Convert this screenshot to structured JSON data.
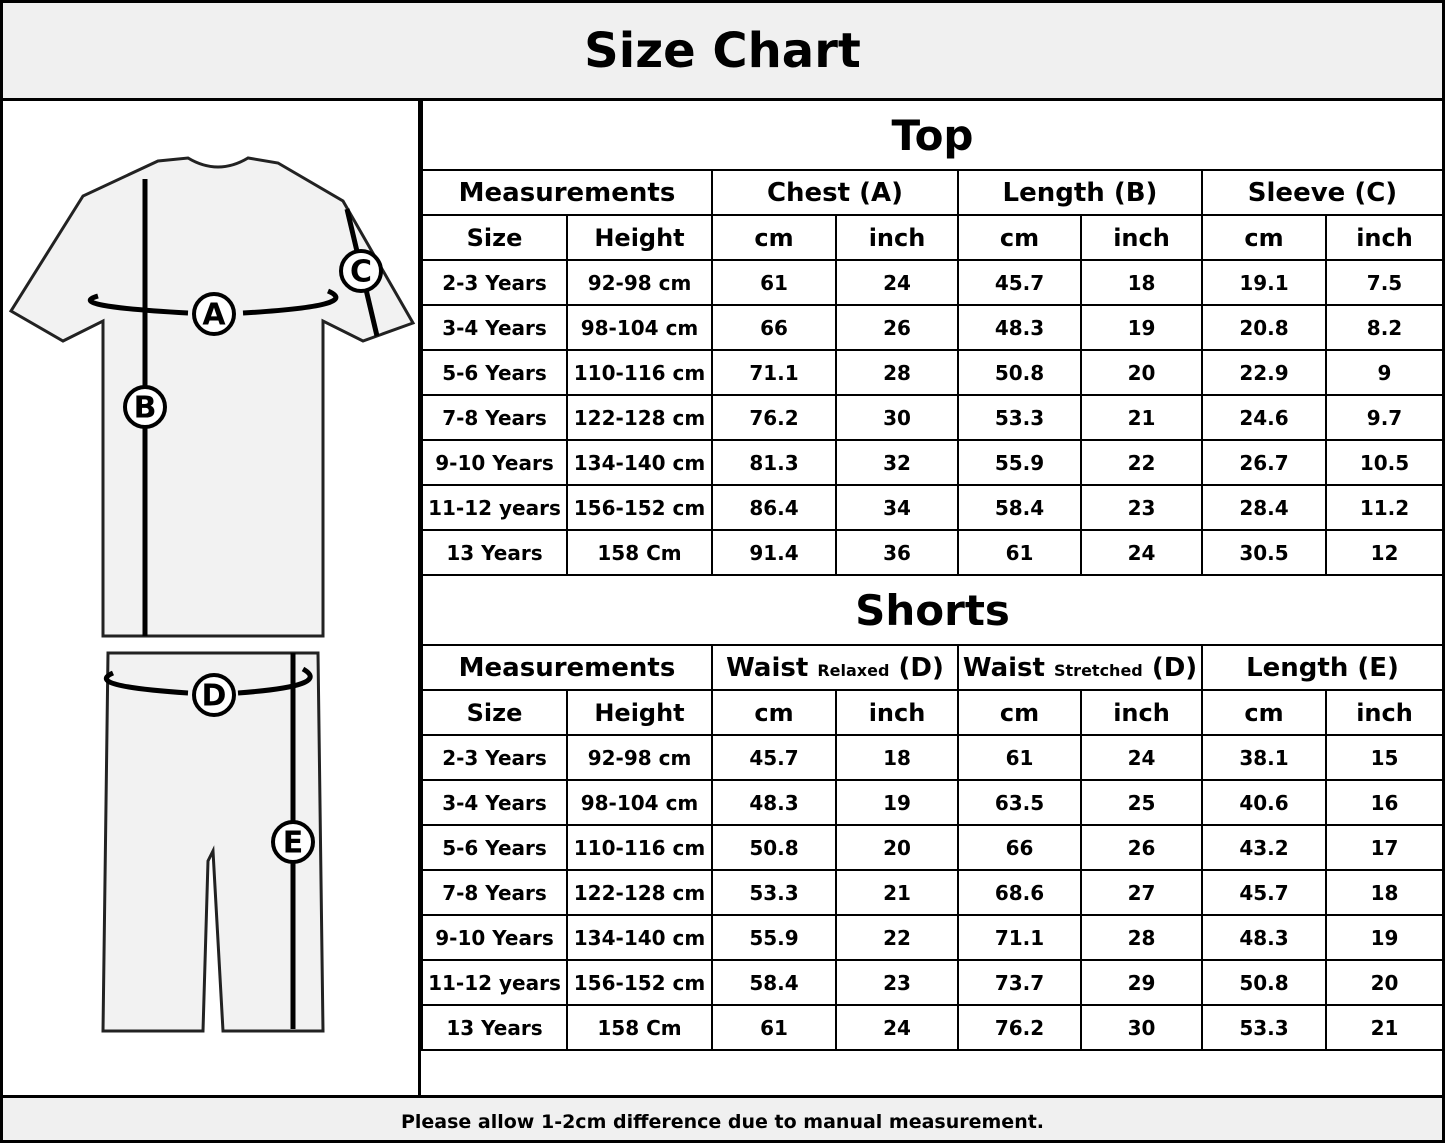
{
  "header": {
    "title": "Size Chart"
  },
  "diagram": {
    "labels": [
      "A",
      "B",
      "C",
      "D",
      "E"
    ]
  },
  "top": {
    "title": "Top",
    "measurements": "Measurements",
    "groups": [
      "Chest (A)",
      "Length (B)",
      "Sleeve (C)"
    ],
    "subheaders": [
      "Size",
      "Height",
      "cm",
      "inch",
      "cm",
      "inch",
      "cm",
      "inch"
    ],
    "rows": [
      [
        "2-3 Years",
        "92-98 cm",
        61,
        24,
        45.7,
        18,
        19.1,
        7.5
      ],
      [
        "3-4 Years",
        "98-104 cm",
        66,
        26,
        48.3,
        19,
        20.8,
        8.2
      ],
      [
        "5-6 Years",
        "110-116 cm",
        71.1,
        28,
        50.8,
        20,
        22.9,
        9
      ],
      [
        "7-8 Years",
        "122-128 cm",
        76.2,
        30,
        53.3,
        21,
        24.6,
        9.7
      ],
      [
        "9-10 Years",
        "134-140 cm",
        81.3,
        32,
        55.9,
        22,
        26.7,
        10.5
      ],
      [
        "11-12 years",
        "156-152 cm",
        86.4,
        34,
        58.4,
        23,
        28.4,
        11.2
      ],
      [
        "13 Years",
        "158 Cm",
        91.4,
        36,
        61,
        24,
        30.5,
        12
      ]
    ]
  },
  "shorts": {
    "title": "Shorts",
    "measurements": "Measurements",
    "groups": [
      {
        "main": "Waist",
        "note": "Relaxed",
        "suffix": "(D)"
      },
      {
        "main": "Waist",
        "note": "Stretched",
        "suffix": "(D)"
      },
      "Length (E)"
    ],
    "subheaders": [
      "Size",
      "Height",
      "cm",
      "inch",
      "cm",
      "inch",
      "cm",
      "inch"
    ],
    "rows": [
      [
        "2-3 Years",
        "92-98 cm",
        45.7,
        18,
        61,
        24,
        38.1,
        15
      ],
      [
        "3-4 Years",
        "98-104 cm",
        48.3,
        19,
        63.5,
        25,
        40.6,
        16
      ],
      [
        "5-6 Years",
        "110-116 cm",
        50.8,
        20,
        66,
        26,
        43.2,
        17
      ],
      [
        "7-8 Years",
        "122-128 cm",
        53.3,
        21,
        68.6,
        27,
        45.7,
        18
      ],
      [
        "9-10 Years",
        "134-140 cm",
        55.9,
        22,
        71.1,
        28,
        48.3,
        19
      ],
      [
        "11-12 years",
        "156-152 cm",
        58.4,
        23,
        73.7,
        29,
        50.8,
        20
      ],
      [
        "13 Years",
        "158 Cm",
        61,
        24,
        76.2,
        30,
        53.3,
        21
      ]
    ]
  },
  "footer": {
    "note": "Please allow 1-2cm difference due to manual measurement."
  }
}
